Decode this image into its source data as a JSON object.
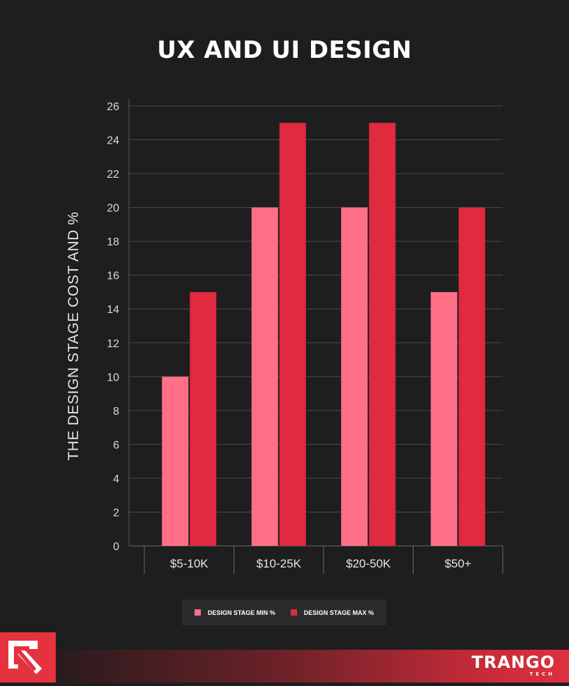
{
  "chart_data": {
    "type": "bar",
    "title": "UX AND UI DESIGN",
    "xlabel": "",
    "ylabel": "THE DESIGN STAGE COST AND %",
    "categories": [
      "$5-10K",
      "$10-25K",
      "$20-50K",
      "$50+"
    ],
    "series": [
      {
        "name": "DESIGN STAGE MIN %",
        "values": [
          10,
          20,
          20,
          15
        ],
        "color": "#ff6f87"
      },
      {
        "name": "DESIGN STAGE MAX %",
        "values": [
          15,
          25,
          25,
          20
        ],
        "color": "#e02a3f"
      }
    ],
    "ylim": [
      0,
      26
    ],
    "yticks": [
      0,
      2,
      4,
      6,
      8,
      10,
      12,
      14,
      16,
      18,
      20,
      22,
      24,
      26
    ],
    "grid": true,
    "legend": "bottom"
  },
  "brand": {
    "name": "TRANGO",
    "sub": "TECH",
    "logo_icon": "arrow-logo-icon"
  },
  "colors": {
    "background": "#1e1e1f",
    "accent": "#e5323f"
  }
}
